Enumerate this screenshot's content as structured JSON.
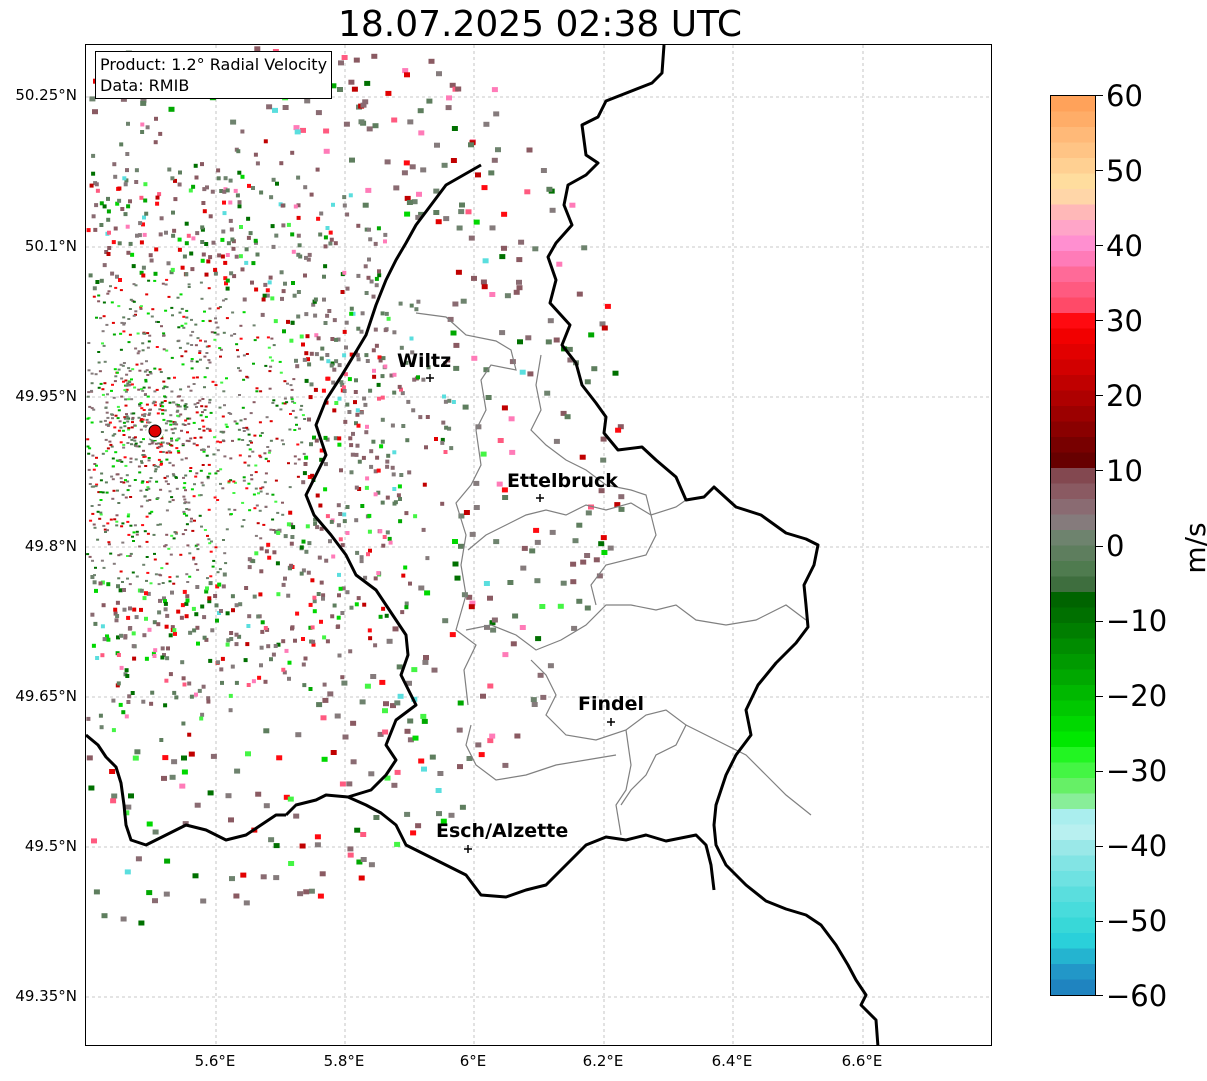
{
  "title": "18.07.2025 02:38 UTC",
  "info": {
    "product": "Product: 1.2° Radial Velocity",
    "data": "Data: RMIB"
  },
  "axes": {
    "lat_ticks": [
      "50.25°N",
      "50.1°N",
      "49.95°N",
      "49.8°N",
      "49.65°N",
      "49.5°N",
      "49.35°N"
    ],
    "lon_ticks": [
      "5.6°E",
      "5.8°E",
      "6°E",
      "6.2°E",
      "6.4°E",
      "6.6°E"
    ]
  },
  "cities": [
    "Wiltz",
    "Ettelbruck",
    "Findel",
    "Esch/Alzette"
  ],
  "colorbar": {
    "label": "m/s",
    "ticks": [
      "60",
      "50",
      "40",
      "30",
      "20",
      "10",
      "0",
      "−10",
      "−20",
      "−30",
      "−40",
      "−50",
      "−60"
    ],
    "range": [
      -60,
      60
    ]
  },
  "colors": {
    "border": "#000000",
    "canton_lines": "#808080",
    "radar_marker": "#e00000",
    "grid": "#b0b0b0"
  }
}
